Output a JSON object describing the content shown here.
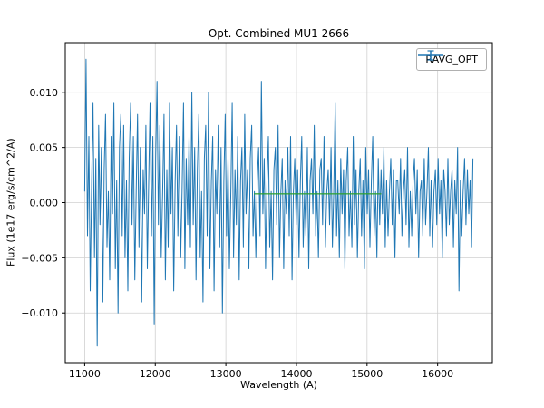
{
  "figure": {
    "title": "Opt. Combined MU1 2666",
    "xlabel": "Wavelength (A)",
    "ylabel": "Flux (1e17  erg/s/cm^2/A)"
  },
  "legend": {
    "entries": [
      {
        "label": "RAVG_OPT",
        "color": "#1f77b4",
        "marker": "errorbar-line"
      }
    ]
  },
  "chart_data": {
    "type": "line",
    "title": "Opt. Combined MU1 2666",
    "xlabel": "Wavelength (A)",
    "ylabel": "Flux (1e17  erg/s/cm^2/A)",
    "xlim": [
      10725,
      16775
    ],
    "ylim": [
      -0.0145,
      0.0145
    ],
    "x_ticks": [
      11000,
      12000,
      13000,
      14000,
      15000,
      16000
    ],
    "y_ticks": [
      -0.01,
      -0.005,
      0.0,
      0.005,
      0.01
    ],
    "grid": true,
    "legend_position": "upper right",
    "colors": {
      "line": "#1f77b4",
      "baseline": "#2ca02c",
      "grid": "#d0d0d0",
      "frame": "#000000"
    },
    "series": [
      {
        "name": "RAVG_OPT",
        "color": "#1f77b4",
        "x_start": 11000,
        "x_end": 16500,
        "values": [
          0.001,
          0.013,
          -0.003,
          0.006,
          -0.008,
          0.002,
          0.009,
          -0.005,
          0.004,
          -0.013,
          0.007,
          -0.002,
          0.005,
          -0.009,
          0.003,
          0.008,
          -0.004,
          0.001,
          -0.007,
          0.006,
          -0.001,
          0.009,
          -0.006,
          0.002,
          -0.01,
          0.005,
          0.008,
          -0.003,
          0.007,
          -0.005,
          0.002,
          -0.008,
          0.004,
          0.009,
          -0.002,
          0.006,
          -0.007,
          0.001,
          0.008,
          -0.004,
          0.005,
          -0.009,
          0.003,
          -0.001,
          0.007,
          -0.006,
          0.002,
          0.009,
          -0.003,
          0.006,
          -0.011,
          0.004,
          0.011,
          -0.002,
          0.007,
          -0.005,
          0.001,
          0.008,
          -0.007,
          0.003,
          -0.004,
          0.009,
          -0.001,
          0.005,
          -0.008,
          0.002,
          0.007,
          -0.003,
          0.006,
          -0.005,
          0.001,
          0.009,
          -0.006,
          0.004,
          -0.002,
          0.006,
          -0.004,
          0.01,
          -0.002,
          0.005,
          -0.007,
          0.003,
          0.008,
          -0.005,
          0.001,
          -0.009,
          0.004,
          0.007,
          -0.003,
          0.01,
          -0.006,
          0.002,
          0.006,
          -0.008,
          0.003,
          -0.001,
          0.007,
          -0.004,
          0.005,
          -0.01,
          0.002,
          0.008,
          -0.003,
          0.004,
          -0.006,
          0.001,
          0.009,
          -0.005,
          0.003,
          -0.002,
          0.006,
          -0.007,
          0.002,
          0.005,
          -0.004,
          0.008,
          -0.001,
          0.003,
          -0.006,
          0.004,
          0.007,
          -0.003,
          0.001,
          -0.005,
          0.002,
          0.005,
          -0.003,
          0.011,
          -0.001,
          0.004,
          -0.006,
          0.002,
          0.006,
          -0.004,
          0.001,
          -0.007,
          0.003,
          0.005,
          -0.002,
          0.007,
          -0.005,
          0.001,
          0.004,
          -0.006,
          0.002,
          -0.001,
          0.005,
          -0.003,
          0.006,
          -0.007,
          0.001,
          0.004,
          -0.002,
          0.003,
          -0.005,
          0.002,
          0.006,
          -0.004,
          0.001,
          -0.003,
          0.005,
          -0.006,
          0.002,
          0.004,
          -0.001,
          0.007,
          -0.003,
          0.001,
          -0.005,
          0.003,
          0.004,
          -0.002,
          0.006,
          -0.004,
          0.001,
          0.003,
          -0.002,
          0.005,
          -0.004,
          0.001,
          0.009,
          -0.003,
          0.002,
          -0.005,
          0.004,
          -0.001,
          0.003,
          -0.006,
          0.002,
          0.005,
          -0.003,
          0.001,
          -0.004,
          0.006,
          -0.002,
          0.003,
          -0.005,
          0.001,
          0.004,
          -0.003,
          0.002,
          -0.006,
          0.005,
          -0.001,
          0.003,
          -0.004,
          0.002,
          0.006,
          -0.003,
          0.001,
          -0.005,
          0.004,
          -0.002,
          0.003,
          -0.001,
          0.005,
          -0.004,
          0.002,
          -0.003,
          0.001,
          0.004,
          -0.002,
          0.003,
          -0.005,
          0.002,
          0.002,
          -0.001,
          0.004,
          -0.003,
          0.001,
          0.003,
          -0.002,
          0.005,
          -0.004,
          0.001,
          -0.003,
          0.002,
          0.004,
          -0.001,
          0.003,
          -0.005,
          0.001,
          0.002,
          -0.003,
          0.004,
          -0.002,
          0.001,
          0.005,
          -0.003,
          0.002,
          -0.004,
          0.001,
          0.003,
          -0.002,
          0.004,
          -0.001,
          0.002,
          -0.005,
          0.003,
          0.001,
          -0.003,
          0.004,
          -0.002,
          0.001,
          0.003,
          -0.004,
          0.002,
          -0.001,
          0.005,
          -0.008,
          0.002,
          -0.003,
          0.001,
          0.004,
          -0.002,
          0.003,
          -0.001,
          0.002,
          -0.004,
          0.004
        ]
      },
      {
        "name": "baseline",
        "color": "#2ca02c",
        "x": [
          13400,
          15200
        ],
        "y": [
          0.0008,
          0.0008
        ]
      }
    ]
  }
}
